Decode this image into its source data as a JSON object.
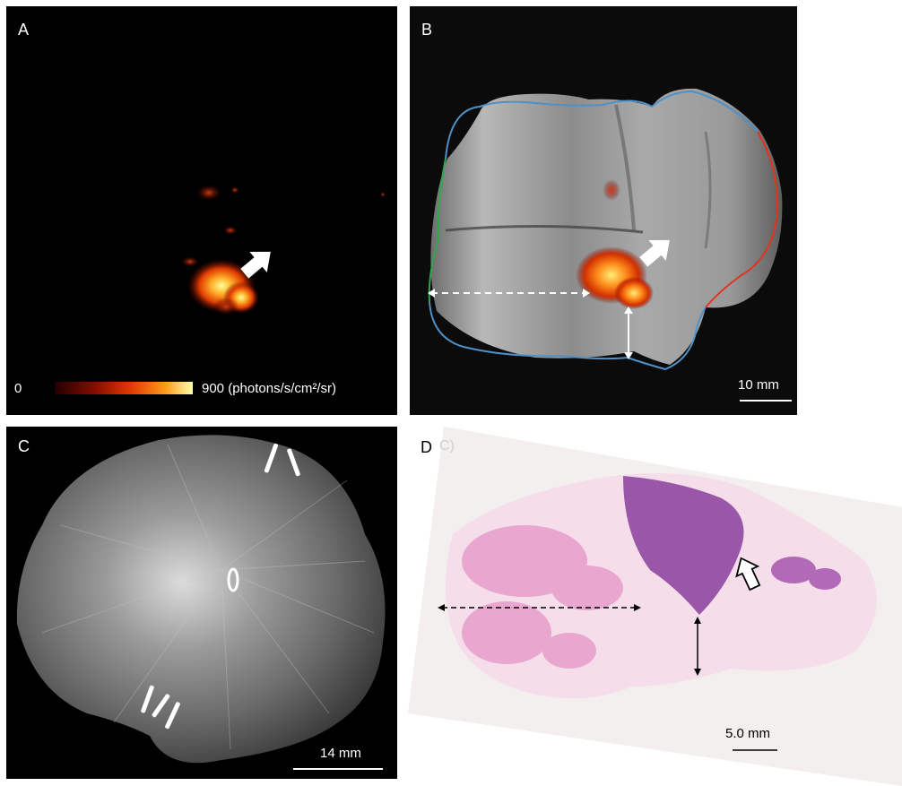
{
  "panels": {
    "a": {
      "label": "A",
      "colorbar_min": "0",
      "colorbar_max": "900 (photons/s/cm²/sr)"
    },
    "b": {
      "label": "B",
      "scalebar": "10 mm"
    },
    "c": {
      "label": "C",
      "scalebar": "14 mm"
    },
    "d": {
      "label": "D",
      "label_extra": "C)",
      "scalebar": "5.0 mm"
    }
  },
  "colors": {
    "margin_outline": "#4f90c6",
    "margin_left": "#2fa84f",
    "margin_right": "#e0341c",
    "colormap": [
      "#200000",
      "#8a0d00",
      "#e03a00",
      "#ff9a1a",
      "#ffff99"
    ],
    "he_stain_pink": "#e8a0cc",
    "he_stain_purple": "#9a56a8"
  }
}
